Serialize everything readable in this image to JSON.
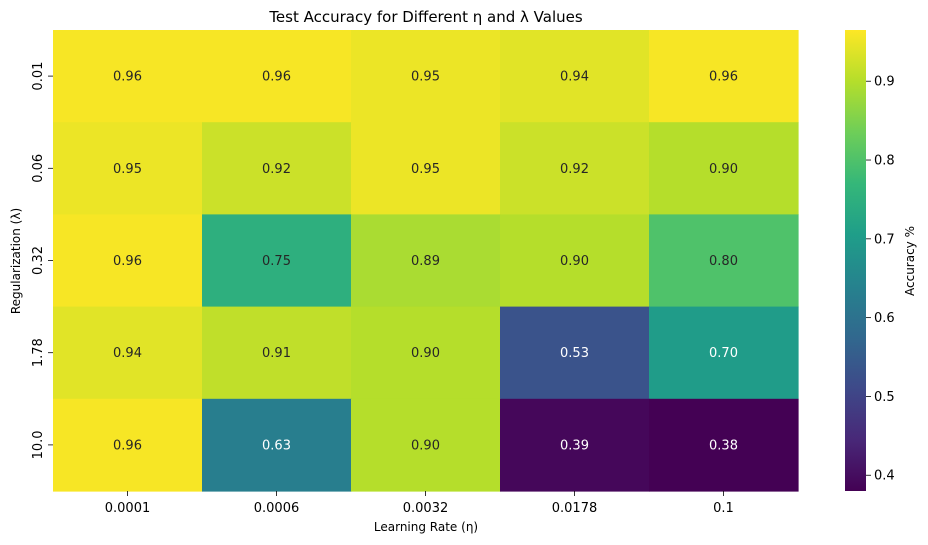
{
  "chart_data": {
    "type": "heatmap",
    "title": "Test Accuracy for Different η and λ Values",
    "xlabel": "Learning Rate (η)",
    "ylabel": "Regularization (λ)",
    "x_categories": [
      "0.0001",
      "0.0006",
      "0.0032",
      "0.0178",
      "0.1"
    ],
    "y_categories": [
      "0.01",
      "0.06",
      "0.32",
      "1.78",
      "10.0"
    ],
    "values": [
      [
        0.96,
        0.96,
        0.95,
        0.94,
        0.96
      ],
      [
        0.95,
        0.92,
        0.95,
        0.92,
        0.9
      ],
      [
        0.96,
        0.75,
        0.89,
        0.9,
        0.8
      ],
      [
        0.94,
        0.91,
        0.9,
        0.53,
        0.7
      ],
      [
        0.96,
        0.63,
        0.9,
        0.39,
        0.38
      ]
    ],
    "colormap": "viridis",
    "vmin": 0.38,
    "vmax": 0.965,
    "colorbar": {
      "label": "Accuracy %",
      "ticks": [
        0.4,
        0.5,
        0.6,
        0.7,
        0.8,
        0.9
      ],
      "tick_labels": [
        "0.4",
        "0.5",
        "0.6",
        "0.7",
        "0.8",
        "0.9"
      ]
    },
    "annotations": true,
    "annotation_format": "0.00"
  }
}
